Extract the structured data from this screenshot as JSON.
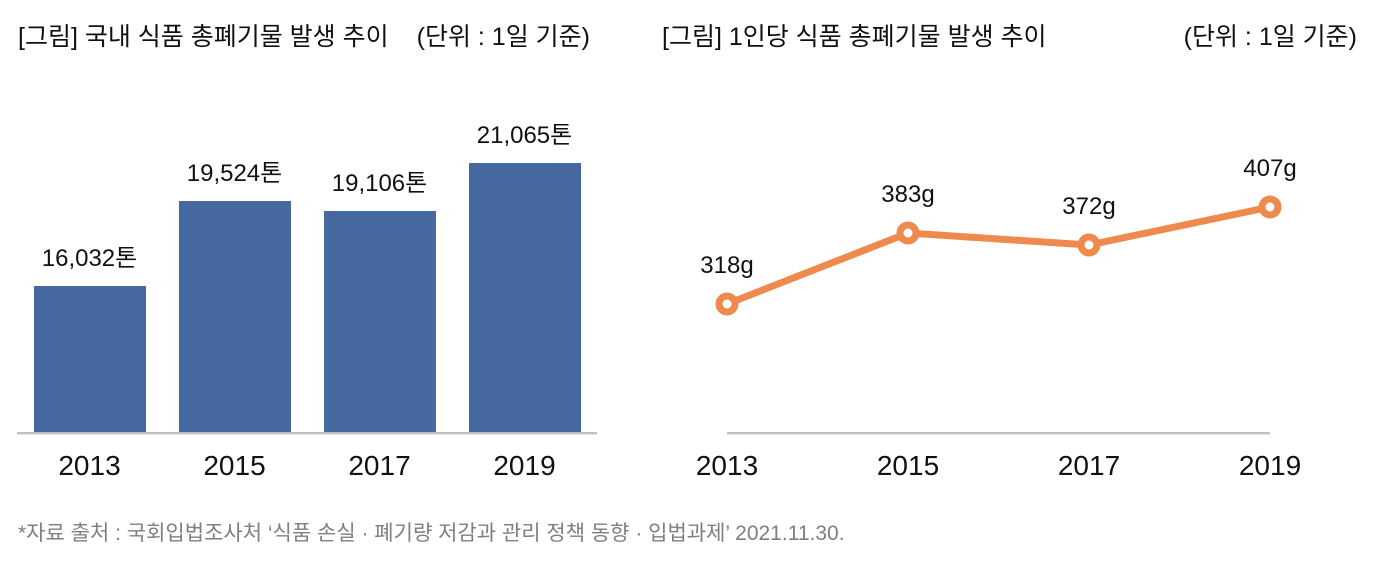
{
  "footer": {
    "source": "*자료 출처 : 국회입법조사처 ‘식품 손실 · 폐기량 저감과 관리 정책 동향 · 입법과제’ 2021.11.30."
  },
  "colors": {
    "bar": "#45689f",
    "line": "#ee8a4d",
    "marker_fill": "#ffffff",
    "axis": "#bfbfbf",
    "text": "#111111",
    "footer_text": "#7f7f7f"
  },
  "chart_data": [
    {
      "type": "bar",
      "title": "[그림] 국내 식품 총폐기물 발생 추이",
      "unit": "(단위 : 1일 기준)",
      "categories": [
        "2013",
        "2015",
        "2017",
        "2019"
      ],
      "values": [
        16032,
        19524,
        19106,
        21065
      ],
      "value_labels": [
        "16,032톤",
        "19,524톤",
        "19,106톤",
        "21,065톤"
      ],
      "xlabel": "",
      "ylabel": "",
      "ylim": [
        10000,
        22100
      ],
      "grid": false,
      "legend": false,
      "bar_color": "#45689f"
    },
    {
      "type": "line",
      "title": "[그림] 1인당 식품 총폐기물 발생 추이",
      "unit": "(단위 : 1일 기준)",
      "categories": [
        "2013",
        "2015",
        "2017",
        "2019"
      ],
      "values": [
        318,
        383,
        372,
        407
      ],
      "value_labels": [
        "318g",
        "383g",
        "372g",
        "407g"
      ],
      "xlabel": "",
      "ylabel": "",
      "ylim": [
        200,
        460
      ],
      "grid": false,
      "legend": false,
      "line_color": "#ee8a4d",
      "marker": "circle-open"
    }
  ]
}
